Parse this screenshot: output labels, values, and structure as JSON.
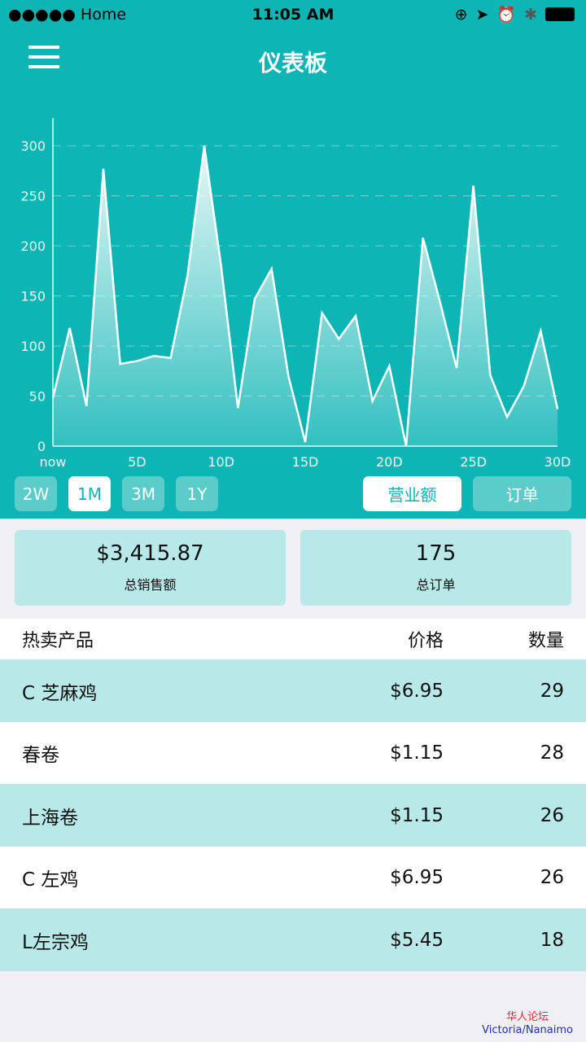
{
  "status_bar": {
    "carrier": "●●●●● Home",
    "time": "11:05 AM"
  },
  "header": {
    "title": "仪表板"
  },
  "chart_data": {
    "type": "area",
    "x": [
      0,
      1,
      2,
      3,
      4,
      5,
      6,
      7,
      8,
      9,
      10,
      11,
      12,
      13,
      14,
      15,
      16,
      17,
      18,
      19,
      20,
      21,
      22,
      23,
      24,
      25,
      26,
      27,
      28,
      29,
      30
    ],
    "values": [
      48,
      118,
      40,
      277,
      82,
      85,
      90,
      88,
      170,
      300,
      180,
      38,
      147,
      177,
      70,
      4,
      133,
      107,
      130,
      45,
      80,
      0,
      208,
      145,
      78,
      260,
      71,
      29,
      60,
      115,
      37
    ],
    "xticks": [
      {
        "v": 0,
        "label": "now"
      },
      {
        "v": 5,
        "label": "5D"
      },
      {
        "v": 10,
        "label": "10D"
      },
      {
        "v": 15,
        "label": "15D"
      },
      {
        "v": 20,
        "label": "20D"
      },
      {
        "v": 25,
        "label": "25D"
      },
      {
        "v": 30,
        "label": "30D"
      }
    ],
    "yticks": [
      0,
      50,
      100,
      150,
      200,
      250,
      300
    ],
    "ylim": [
      0,
      325
    ],
    "xlim": [
      0,
      30
    ],
    "grid": true,
    "line_color": "#ffffff",
    "background": "#0db5b4"
  },
  "ranges": [
    {
      "label": "2W",
      "active": false
    },
    {
      "label": "1M",
      "active": true
    },
    {
      "label": "3M",
      "active": false
    },
    {
      "label": "1Y",
      "active": false
    }
  ],
  "metrics": [
    {
      "label": "营业额",
      "active": true
    },
    {
      "label": "订单",
      "active": false
    }
  ],
  "summary": {
    "sales_value": "$3,415.87",
    "sales_label": "总销售额",
    "orders_value": "175",
    "orders_label": "总订单"
  },
  "table": {
    "headers": [
      "热卖产品",
      "价格",
      "数量"
    ],
    "rows": [
      [
        "C 芝麻鸡",
        "$6.95",
        "29"
      ],
      [
        "春卷",
        "$1.15",
        "28"
      ],
      [
        "上海卷",
        "$1.15",
        "26"
      ],
      [
        "C 左鸡",
        "$6.95",
        "26"
      ],
      [
        "L左宗鸡",
        "$5.45",
        "18"
      ]
    ]
  },
  "watermark": {
    "line1": "华人论坛",
    "line2": "Victoria/Nanaimo"
  }
}
